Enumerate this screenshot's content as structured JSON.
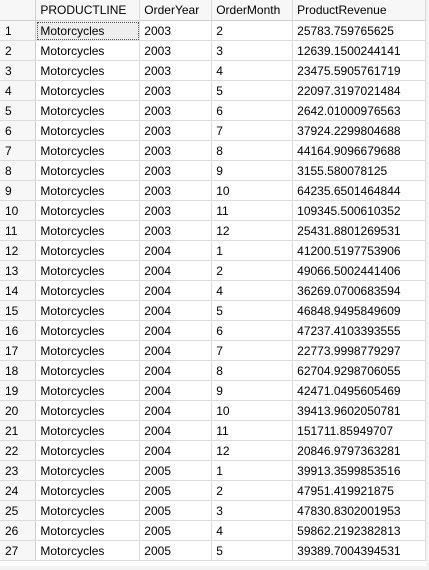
{
  "columns": [
    "",
    "PRODUCTLINE",
    "OrderYear",
    "OrderMonth",
    "ProductRevenue"
  ],
  "rows": [
    [
      "1",
      "Motorcycles",
      "2003",
      "2",
      "25783.759765625"
    ],
    [
      "2",
      "Motorcycles",
      "2003",
      "3",
      "12639.1500244141"
    ],
    [
      "3",
      "Motorcycles",
      "2003",
      "4",
      "23475.5905761719"
    ],
    [
      "4",
      "Motorcycles",
      "2003",
      "5",
      "22097.3197021484"
    ],
    [
      "5",
      "Motorcycles",
      "2003",
      "6",
      "2642.01000976563"
    ],
    [
      "6",
      "Motorcycles",
      "2003",
      "7",
      "37924.2299804688"
    ],
    [
      "7",
      "Motorcycles",
      "2003",
      "8",
      "44164.9096679688"
    ],
    [
      "8",
      "Motorcycles",
      "2003",
      "9",
      "3155.580078125"
    ],
    [
      "9",
      "Motorcycles",
      "2003",
      "10",
      "64235.6501464844"
    ],
    [
      "10",
      "Motorcycles",
      "2003",
      "11",
      "109345.500610352"
    ],
    [
      "11",
      "Motorcycles",
      "2003",
      "12",
      "25431.8801269531"
    ],
    [
      "12",
      "Motorcycles",
      "2004",
      "1",
      "41200.5197753906"
    ],
    [
      "13",
      "Motorcycles",
      "2004",
      "2",
      "49066.5002441406"
    ],
    [
      "14",
      "Motorcycles",
      "2004",
      "4",
      "36269.0700683594"
    ],
    [
      "15",
      "Motorcycles",
      "2004",
      "5",
      "46848.9495849609"
    ],
    [
      "16",
      "Motorcycles",
      "2004",
      "6",
      "47237.4103393555"
    ],
    [
      "17",
      "Motorcycles",
      "2004",
      "7",
      "22773.9998779297"
    ],
    [
      "18",
      "Motorcycles",
      "2004",
      "8",
      "62704.9298706055"
    ],
    [
      "19",
      "Motorcycles",
      "2004",
      "9",
      "42471.0495605469"
    ],
    [
      "20",
      "Motorcycles",
      "2004",
      "10",
      "39413.9602050781"
    ],
    [
      "21",
      "Motorcycles",
      "2004",
      "11",
      "151711.85949707"
    ],
    [
      "22",
      "Motorcycles",
      "2004",
      "12",
      "20846.9797363281"
    ],
    [
      "23",
      "Motorcycles",
      "2005",
      "1",
      "39913.3599853516"
    ],
    [
      "24",
      "Motorcycles",
      "2005",
      "2",
      "47951.419921875"
    ],
    [
      "25",
      "Motorcycles",
      "2005",
      "3",
      "47830.8302001953"
    ],
    [
      "26",
      "Motorcycles",
      "2005",
      "4",
      "59862.2192382813"
    ],
    [
      "27",
      "Motorcycles",
      "2005",
      "5",
      "39389.7004394531"
    ]
  ]
}
